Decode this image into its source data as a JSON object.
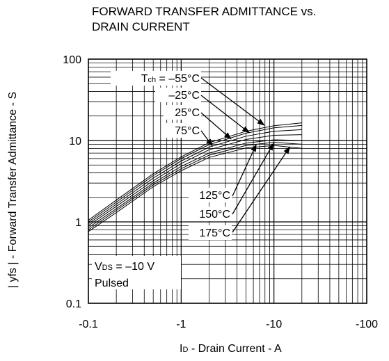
{
  "title_line1": "FORWARD TRANSFER ADMITTANCE vs.",
  "title_line2": "DRAIN CURRENT",
  "chart_data": {
    "type": "line",
    "xlabel": "I_D - Drain Current - A",
    "xlabel_main": "I",
    "xlabel_sub": "D",
    "xlabel_rest": " - Drain Current - A",
    "ylabel": "| yfs | - Forward Transfer Admittance - S",
    "x_scale": "log (magnitude)",
    "y_scale": "log",
    "xlim": [
      -0.1,
      -20
    ],
    "ylim": [
      0.1,
      100
    ],
    "grid": true,
    "x_ticks": [
      "-0.1",
      "-1",
      "-10",
      "-100"
    ],
    "y_ticks": [
      "0.1",
      "1",
      "10",
      "100"
    ],
    "condition_line1_main": "V",
    "condition_line1_sub": "DS",
    "condition_line1_rest": " = –10 V",
    "condition_line2": "Pulsed",
    "series_label_prefix_main": "T",
    "series_label_prefix_sub": "ch",
    "series_label_prefix_rest": " = ",
    "series": [
      {
        "name": "–55°C",
        "x": [
          -0.1,
          -0.2,
          -0.5,
          -1,
          -2,
          -5,
          -10,
          -20
        ],
        "y": [
          1.05,
          1.85,
          3.9,
          6.3,
          9.4,
          13.0,
          15.2,
          16.5
        ]
      },
      {
        "name": "–25°C",
        "x": [
          -0.1,
          -0.2,
          -0.5,
          -1,
          -2,
          -5,
          -10,
          -20
        ],
        "y": [
          1.0,
          1.75,
          3.7,
          6.0,
          8.9,
          12.3,
          14.3,
          15.3
        ]
      },
      {
        "name": "25°C",
        "x": [
          -0.1,
          -0.2,
          -0.5,
          -1,
          -2,
          -5,
          -10,
          -20
        ],
        "y": [
          0.95,
          1.65,
          3.45,
          5.6,
          8.3,
          11.3,
          13.0,
          13.6
        ]
      },
      {
        "name": "75°C",
        "x": [
          -0.1,
          -0.2,
          -0.5,
          -1,
          -2,
          -5,
          -10,
          -20
        ],
        "y": [
          0.9,
          1.55,
          3.2,
          5.2,
          7.7,
          10.3,
          11.6,
          11.8
        ]
      },
      {
        "name": "125°C",
        "x": [
          -0.1,
          -0.2,
          -0.5,
          -1,
          -2,
          -5,
          -10,
          -20
        ],
        "y": [
          0.85,
          1.45,
          3.0,
          4.8,
          7.0,
          9.3,
          10.2,
          10.0
        ]
      },
      {
        "name": "150°C",
        "x": [
          -0.1,
          -0.2,
          -0.5,
          -1,
          -2,
          -5,
          -10,
          -20
        ],
        "y": [
          0.8,
          1.38,
          2.85,
          4.5,
          6.6,
          8.7,
          9.5,
          9.0
        ]
      },
      {
        "name": "175°C",
        "x": [
          -0.1,
          -0.2,
          -0.5,
          -1,
          -2,
          -5,
          -10,
          -20
        ],
        "y": [
          0.76,
          1.3,
          2.7,
          4.25,
          6.2,
          8.1,
          8.7,
          8.0
        ]
      }
    ]
  }
}
